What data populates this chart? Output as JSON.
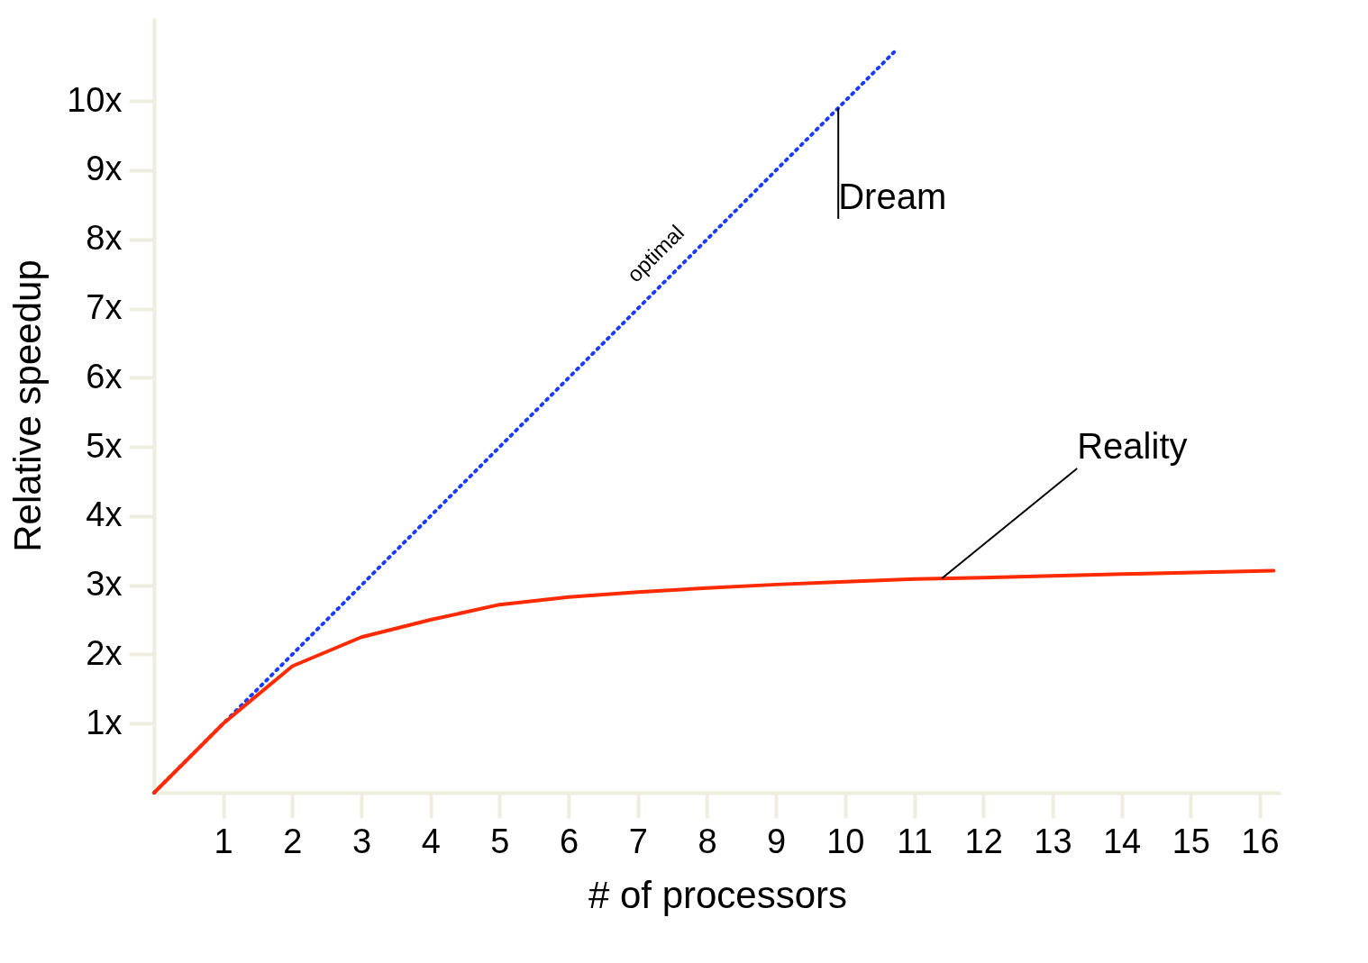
{
  "chart_data": {
    "type": "line",
    "xlabel": "# of processors",
    "ylabel": "Relative speedup",
    "xlim": [
      0,
      16.3
    ],
    "ylim": [
      0,
      11.2
    ],
    "xticks": [
      1,
      2,
      3,
      4,
      5,
      6,
      7,
      8,
      9,
      10,
      11,
      12,
      13,
      14,
      15,
      16
    ],
    "yticks": [
      {
        "value": 1,
        "label": "1x"
      },
      {
        "value": 2,
        "label": "2x"
      },
      {
        "value": 3,
        "label": "3x"
      },
      {
        "value": 4,
        "label": "4x"
      },
      {
        "value": 5,
        "label": "5x"
      },
      {
        "value": 6,
        "label": "6x"
      },
      {
        "value": 7,
        "label": "7x"
      },
      {
        "value": 8,
        "label": "8x"
      },
      {
        "value": 9,
        "label": "9x"
      },
      {
        "value": 10,
        "label": "10x"
      }
    ],
    "grid": false,
    "marker": "none",
    "series": [
      {
        "name": "optimal",
        "color": "#1a3cff",
        "line_style": "dotted",
        "x": [
          0,
          10.75
        ],
        "values": [
          0,
          10.75
        ]
      },
      {
        "color": "#ff2a00",
        "line_style": "solid",
        "x": [
          0,
          1,
          2,
          3,
          4,
          5,
          6,
          7,
          8,
          9,
          10,
          11,
          12,
          14,
          16.2
        ],
        "values": [
          0,
          1.0,
          1.83,
          2.25,
          2.5,
          2.72,
          2.83,
          2.9,
          2.96,
          3.01,
          3.05,
          3.09,
          3.11,
          3.16,
          3.21
        ]
      }
    ],
    "annotations": [
      {
        "text": "Dream",
        "x": 9.9,
        "y": 9.9
      },
      {
        "text": "Reality",
        "x": 11.4,
        "y": 3.1
      }
    ]
  }
}
